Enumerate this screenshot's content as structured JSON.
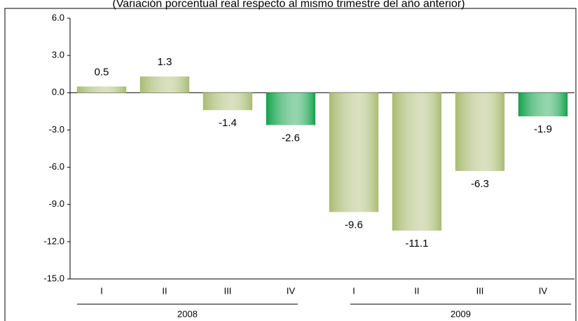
{
  "chart_data": {
    "type": "bar",
    "subtitle": "(Variación porcentual real respecto al mismo trimestre del año anterior)",
    "categories": [
      "I",
      "II",
      "III",
      "IV",
      "I",
      "II",
      "III",
      "IV"
    ],
    "groups": [
      "2008",
      "2009"
    ],
    "values": [
      0.5,
      1.3,
      -1.4,
      -2.6,
      -9.6,
      -11.1,
      -6.3,
      -1.9
    ],
    "colors": [
      "#a9bb72",
      "#a9bb72",
      "#a9bb72",
      "#12a24a",
      "#a9bb72",
      "#a9bb72",
      "#a9bb72",
      "#12a24a"
    ],
    "ylim": [
      -15,
      6
    ],
    "yticks": [
      {
        "value": 6,
        "label": "6.0"
      },
      {
        "value": 3,
        "label": "3.0"
      },
      {
        "value": 0,
        "label": "0.0"
      },
      {
        "value": -3,
        "label": "-3.0"
      },
      {
        "value": -6,
        "label": "-6.0"
      },
      {
        "value": -9,
        "label": "-9.0"
      },
      {
        "value": -12,
        "label": "-12.0"
      },
      {
        "value": -15,
        "label": "-15.0"
      }
    ]
  }
}
